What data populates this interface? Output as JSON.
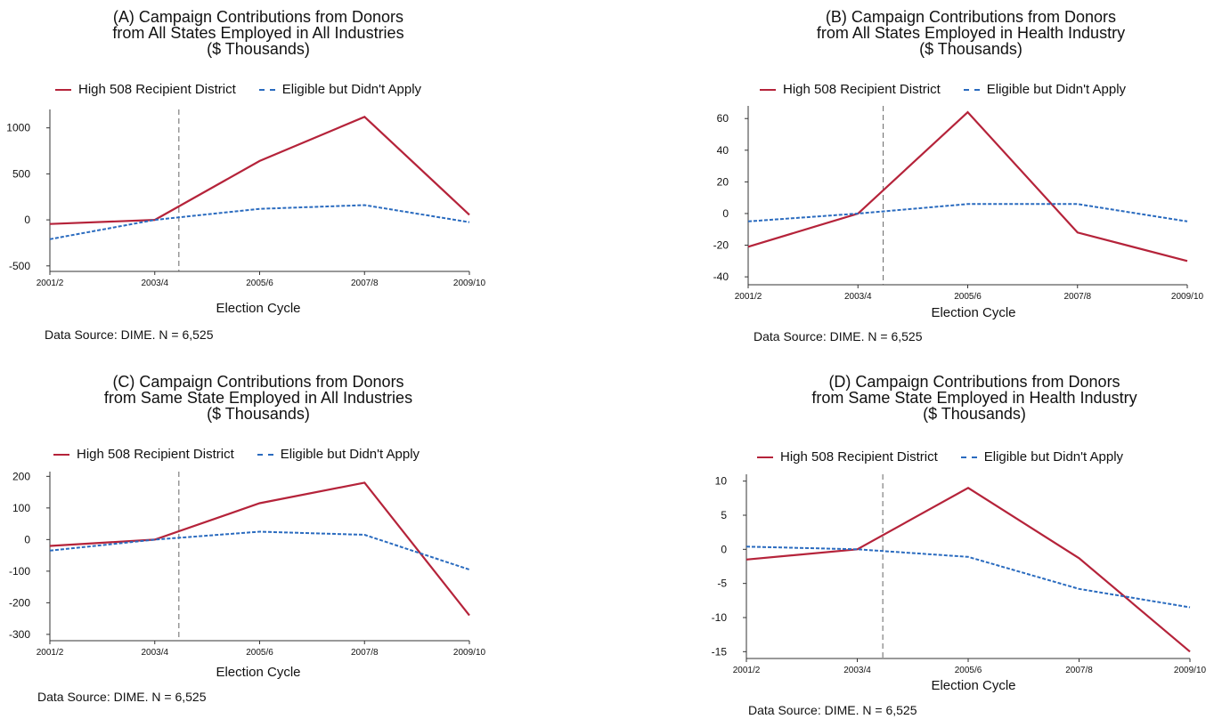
{
  "chart_data": [
    {
      "type": "line",
      "title_lines": [
        "(A) Campaign Contributions from Donors",
        "from All States Employed in All Industries",
        "($ Thousands)"
      ],
      "xlabel": "Election Cycle",
      "ylabel": "",
      "categories": [
        "2001/2",
        "2003/4",
        "2005/6",
        "2007/8",
        "2009/10"
      ],
      "yticks": [
        1000,
        500,
        0,
        -500
      ],
      "ylim": [
        -560,
        1200
      ],
      "vline_after_category": 1,
      "legend_position": "top",
      "series": [
        {
          "name": "High 508 Recipient District",
          "color": "#b5233a",
          "dash": "solid",
          "values": [
            -45,
            0,
            640,
            1120,
            55
          ]
        },
        {
          "name": "Eligible but Didn't Apply",
          "color": "#2a6bbf",
          "dash": "dashed",
          "values": [
            -210,
            0,
            120,
            160,
            -25
          ]
        }
      ],
      "source": "Data Source: DIME. N = 6,525"
    },
    {
      "type": "line",
      "title_lines": [
        "(B) Campaign Contributions from Donors",
        "from All States Employed in Health Industry",
        "($ Thousands)"
      ],
      "xlabel": "Election Cycle",
      "ylabel": "",
      "categories": [
        "2001/2",
        "2003/4",
        "2005/6",
        "2007/8",
        "2009/10"
      ],
      "yticks": [
        60,
        40,
        20,
        0,
        -20,
        -40
      ],
      "ylim": [
        -45,
        68
      ],
      "vline_after_category": 1,
      "legend_position": "top",
      "series": [
        {
          "name": "High 508 Recipient District",
          "color": "#b5233a",
          "dash": "solid",
          "values": [
            -21,
            0,
            64,
            -12,
            -30
          ]
        },
        {
          "name": "Eligible but Didn't Apply",
          "color": "#2a6bbf",
          "dash": "dashed",
          "values": [
            -5,
            0,
            6,
            6,
            -5
          ]
        }
      ],
      "source": "Data Source: DIME. N = 6,525"
    },
    {
      "type": "line",
      "title_lines": [
        "(C) Campaign Contributions from Donors",
        "from Same State Employed in All Industries",
        "($ Thousands)"
      ],
      "xlabel": "Election Cycle",
      "ylabel": "",
      "categories": [
        "2001/2",
        "2003/4",
        "2005/6",
        "2007/8",
        "2009/10"
      ],
      "yticks": [
        200,
        100,
        0,
        -100,
        -200,
        -300
      ],
      "ylim": [
        -320,
        215
      ],
      "vline_after_category": 1,
      "legend_position": "top",
      "series": [
        {
          "name": "High 508 Recipient District",
          "color": "#b5233a",
          "dash": "solid",
          "values": [
            -20,
            0,
            115,
            180,
            -240
          ]
        },
        {
          "name": "Eligible but Didn't Apply",
          "color": "#2a6bbf",
          "dash": "dashed",
          "values": [
            -35,
            0,
            25,
            15,
            -95
          ]
        }
      ],
      "source": "Data Source: DIME. N = 6,525"
    },
    {
      "type": "line",
      "title_lines": [
        "(D) Campaign Contributions from Donors",
        "from Same State Employed in Health Industry",
        "($ Thousands)"
      ],
      "xlabel": "Election Cycle",
      "ylabel": "",
      "categories": [
        "2001/2",
        "2003/4",
        "2005/6",
        "2007/8",
        "2009/10"
      ],
      "yticks": [
        10,
        5,
        0,
        -5,
        -10,
        -15
      ],
      "ylim": [
        -16,
        11
      ],
      "vline_after_category": 1,
      "legend_position": "top",
      "series": [
        {
          "name": "High 508 Recipient District",
          "color": "#b5233a",
          "dash": "solid",
          "values": [
            -1.5,
            0,
            9,
            -1.3,
            -15
          ]
        },
        {
          "name": "Eligible but Didn't Apply",
          "color": "#2a6bbf",
          "dash": "dashed",
          "values": [
            0.4,
            0,
            -1.1,
            -5.8,
            -8.5
          ]
        }
      ],
      "source": "Data Source: DIME. N = 6,525"
    }
  ]
}
